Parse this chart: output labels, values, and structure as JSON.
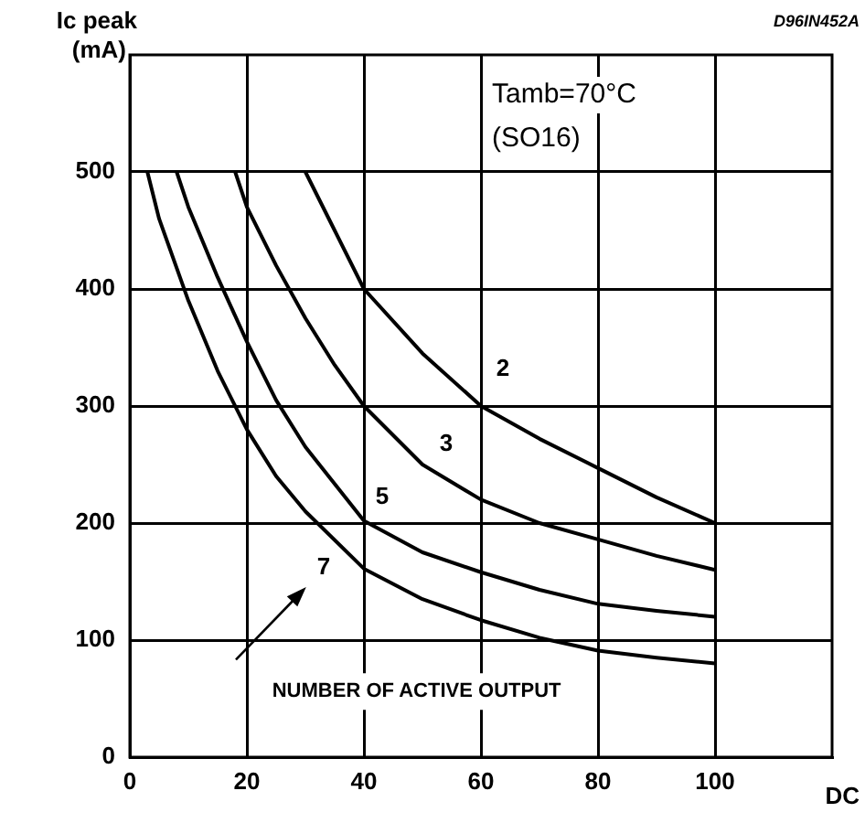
{
  "chart_data": {
    "type": "line",
    "ylabel": "Ic peak\n(mA)",
    "xlabel": "DC",
    "xlim": [
      0,
      120
    ],
    "xticks": [
      0,
      20,
      40,
      60,
      80,
      100
    ],
    "ylim": [
      0,
      600
    ],
    "yticks": [
      0,
      100,
      200,
      300,
      400,
      500
    ],
    "grid": true,
    "legend": false,
    "marker": "none",
    "line_style": "solid",
    "series": [
      {
        "name": "2",
        "color": "#000000",
        "x": [
          30,
          35,
          40,
          50,
          60,
          70,
          80,
          90,
          100
        ],
        "values": [
          500,
          450,
          400,
          345,
          300,
          272,
          247,
          222,
          200
        ]
      },
      {
        "name": "3",
        "color": "#000000",
        "x": [
          18,
          20,
          25,
          30,
          35,
          40,
          50,
          60,
          70,
          80,
          90,
          100
        ],
        "values": [
          500,
          470,
          420,
          375,
          335,
          300,
          250,
          220,
          200,
          186,
          172,
          160
        ]
      },
      {
        "name": "5",
        "color": "#000000",
        "x": [
          8,
          10,
          15,
          20,
          25,
          30,
          40,
          50,
          60,
          70,
          80,
          90,
          100
        ],
        "values": [
          500,
          470,
          410,
          355,
          305,
          265,
          202,
          175,
          158,
          143,
          131,
          125,
          120
        ]
      },
      {
        "name": "7",
        "color": "#000000",
        "x": [
          3,
          5,
          10,
          15,
          20,
          25,
          30,
          40,
          50,
          60,
          70,
          80,
          90,
          100
        ],
        "values": [
          500,
          460,
          390,
          330,
          280,
          240,
          210,
          161,
          135,
          117,
          102,
          91,
          85,
          80
        ]
      }
    ],
    "annotations": [
      "NUMBER OF ACTIVE OUTPUT",
      "Tamb=70°C",
      "(SO16)",
      "D96IN452A"
    ]
  }
}
